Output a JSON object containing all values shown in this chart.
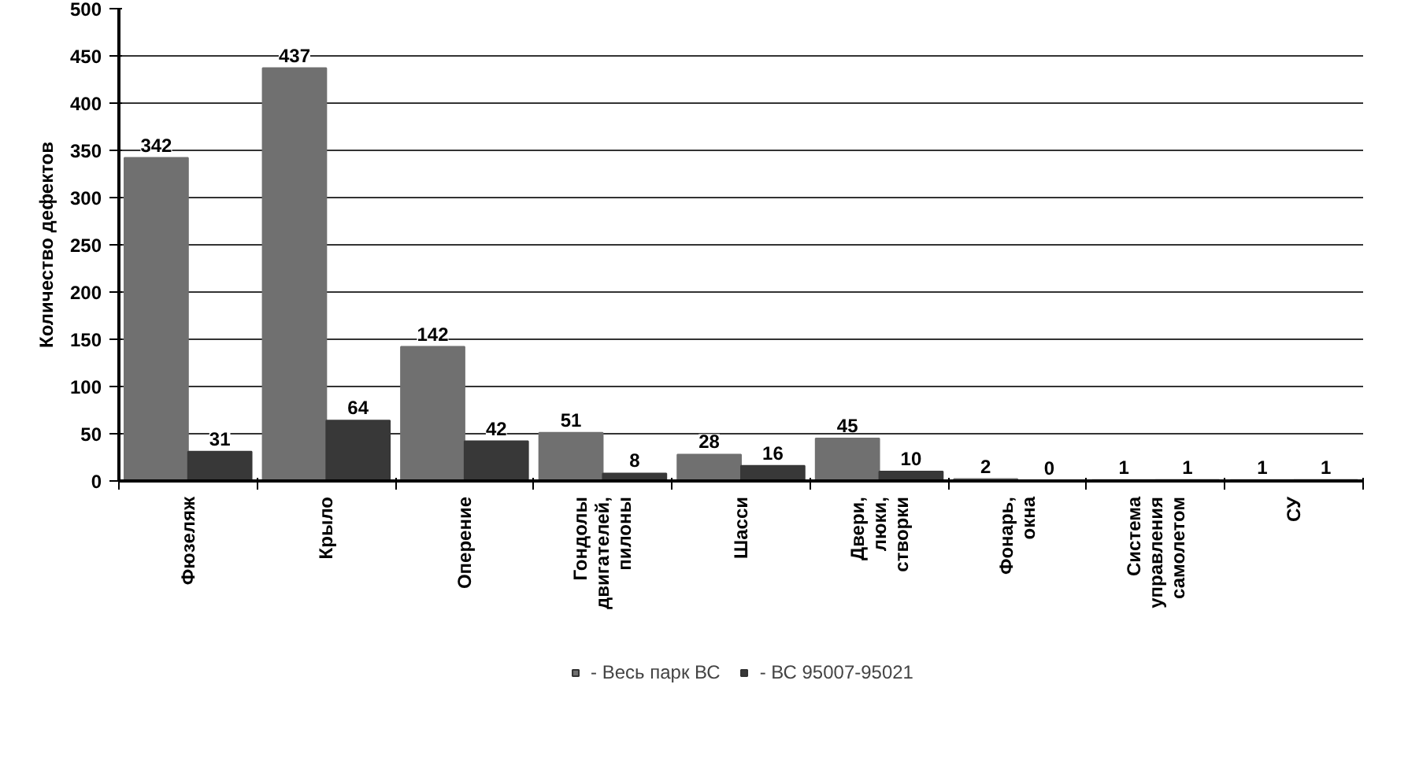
{
  "chart_data": {
    "type": "bar",
    "ylabel": "Количество дефектов",
    "categories": [
      "Фюзеляж",
      "Крыло",
      "Оперение",
      "Гондолы двигателей, пилоны",
      "Шасси",
      "Двери, люки, створки",
      "Фонарь, окна",
      "Система управления самолетом",
      "СУ"
    ],
    "series": [
      {
        "name": "- Весь парк ВС",
        "color": "#707070",
        "values": [
          342,
          437,
          142,
          51,
          28,
          45,
          2,
          1,
          1
        ]
      },
      {
        "name": "- ВС 95007-95021",
        "color": "#383838",
        "values": [
          31,
          64,
          42,
          8,
          16,
          10,
          0,
          1,
          1
        ]
      }
    ],
    "ylim": [
      0,
      500
    ],
    "yticks": [
      0,
      50,
      100,
      150,
      200,
      250,
      300,
      350,
      400,
      450,
      500
    ],
    "grid": "y",
    "legend": "bottom",
    "data_labels": true
  }
}
